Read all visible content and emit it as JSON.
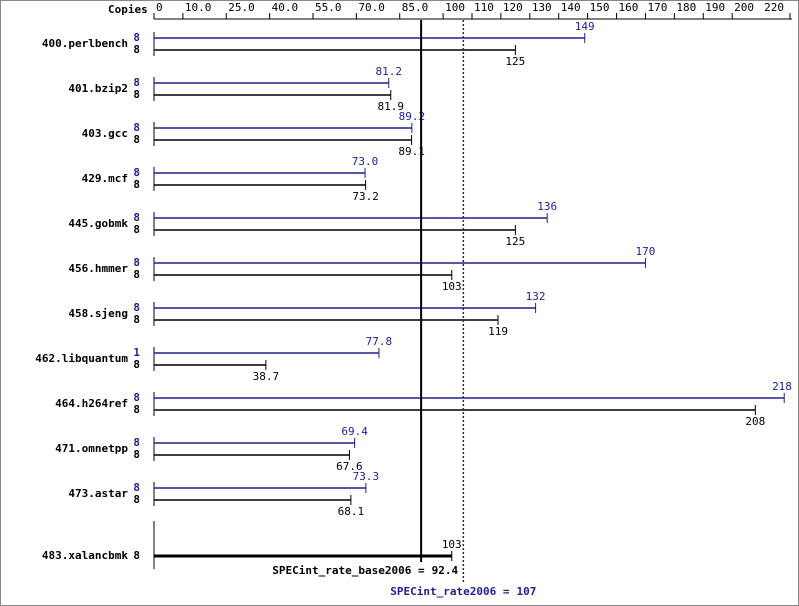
{
  "chart_data": {
    "type": "bar",
    "orientation": "horizontal",
    "copies_label": "Copies",
    "categories": [
      "400.perlbench",
      "401.bzip2",
      "403.gcc",
      "429.mcf",
      "445.gobmk",
      "456.hmmer",
      "458.sjeng",
      "462.libquantum",
      "464.h264ref",
      "471.omnetpp",
      "473.astar",
      "483.xalancbmk"
    ],
    "series": [
      {
        "color": "#1f1f8f",
        "values": [
          149,
          81.2,
          89.2,
          73.0,
          136,
          170,
          132,
          77.8,
          218,
          69.4,
          73.3,
          null
        ],
        "value_labels": [
          "149",
          "81.2",
          "89.2",
          "73.0",
          "136",
          "170",
          "132",
          "77.8",
          "218",
          "69.4",
          "73.3",
          null
        ],
        "copies": [
          8,
          8,
          8,
          8,
          8,
          8,
          8,
          1,
          8,
          8,
          8,
          null
        ]
      },
      {
        "color": "#000000",
        "values": [
          125,
          81.9,
          89.1,
          73.2,
          125,
          103,
          119,
          38.7,
          208,
          67.6,
          68.1,
          103
        ],
        "copies": [
          8,
          8,
          8,
          8,
          8,
          8,
          8,
          8,
          8,
          8,
          8,
          8
        ]
      }
    ],
    "xlim": [
      0,
      220
    ],
    "xticks": [
      0,
      {
        "value": 10,
        "label": "10.0"
      },
      {
        "value": 25,
        "label": "25.0"
      },
      {
        "value": 40,
        "label": "40.0"
      },
      {
        "value": 55,
        "label": "55.0"
      },
      {
        "value": 70,
        "label": "70.0"
      },
      {
        "value": 85,
        "label": "85.0"
      },
      100,
      110,
      120,
      130,
      140,
      150,
      160,
      170,
      180,
      190,
      200,
      220
    ],
    "reference_lines": [
      {
        "label": "SPECint_rate_base2006 =",
        "value": 92.4,
        "color": "#000000",
        "style": "solid"
      },
      {
        "label": "SPECint_rate2006 =",
        "value": 107,
        "color": "#1f1f8f",
        "style": "dotted"
      }
    ]
  }
}
